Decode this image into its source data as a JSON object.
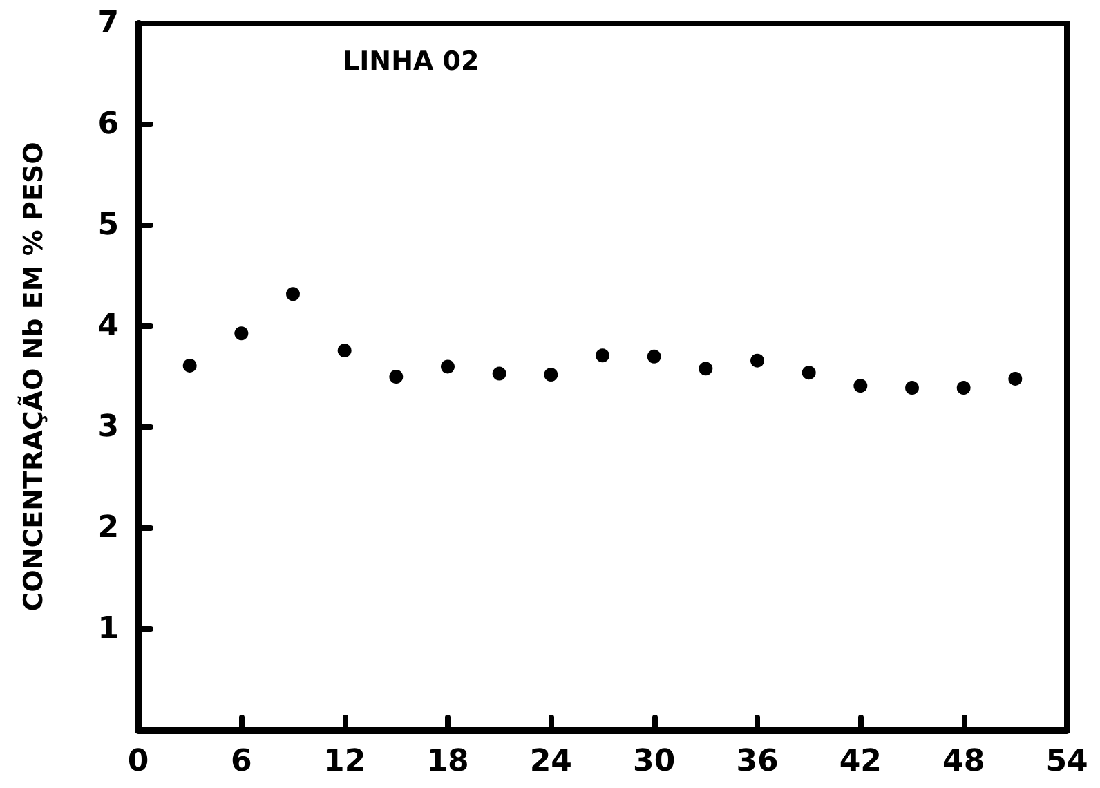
{
  "chart_data": {
    "type": "scatter",
    "title": "LINHA 02",
    "ylabel": "CONCENTRAÇÃO Nb EM % PESO",
    "x": [
      3,
      6,
      9,
      12,
      15,
      18,
      21,
      24,
      27,
      30,
      33,
      36,
      39,
      42,
      45,
      48,
      51
    ],
    "values": [
      3.61,
      3.93,
      4.32,
      3.76,
      3.5,
      3.6,
      3.53,
      3.52,
      3.71,
      3.7,
      3.58,
      3.66,
      3.54,
      3.41,
      3.39,
      3.39,
      3.48
    ],
    "color": "#000000",
    "marker": "circle",
    "xlim": [
      0,
      54
    ],
    "xticks": [
      0,
      6,
      12,
      18,
      24,
      30,
      36,
      42,
      48,
      54
    ],
    "ylim": [
      0,
      7
    ],
    "yticks": [
      1,
      2,
      3,
      4,
      5,
      6,
      7
    ]
  }
}
